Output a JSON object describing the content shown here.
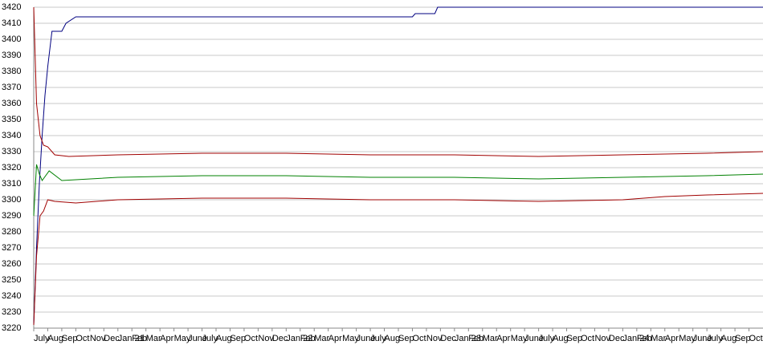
{
  "chart_data": {
    "type": "line",
    "xlim": [
      0,
      52
    ],
    "xticks": [
      {
        "value": 0,
        "label": "July"
      },
      {
        "value": 1,
        "label": "Aug"
      },
      {
        "value": 2,
        "label": "Sep"
      },
      {
        "value": 3,
        "label": "Oct"
      },
      {
        "value": 4,
        "label": "Nov"
      },
      {
        "value": 5,
        "label": "Dec"
      },
      {
        "value": 6,
        "label": "Jan 21"
      },
      {
        "value": 7,
        "label": "Feb"
      },
      {
        "value": 8,
        "label": "Mar"
      },
      {
        "value": 9,
        "label": "Apr"
      },
      {
        "value": 10,
        "label": "May"
      },
      {
        "value": 11,
        "label": "June"
      },
      {
        "value": 12,
        "label": "July"
      },
      {
        "value": 13,
        "label": "Aug"
      },
      {
        "value": 14,
        "label": "Sep"
      },
      {
        "value": 15,
        "label": "Oct"
      },
      {
        "value": 16,
        "label": "Nov"
      },
      {
        "value": 17,
        "label": "Dec"
      },
      {
        "value": 18,
        "label": "Jan 22"
      },
      {
        "value": 19,
        "label": "Feb"
      },
      {
        "value": 20,
        "label": "Mar"
      },
      {
        "value": 21,
        "label": "Apr"
      },
      {
        "value": 22,
        "label": "May"
      },
      {
        "value": 23,
        "label": "June"
      },
      {
        "value": 24,
        "label": "July"
      },
      {
        "value": 25,
        "label": "Aug"
      },
      {
        "value": 26,
        "label": "Sep"
      },
      {
        "value": 27,
        "label": "Oct"
      },
      {
        "value": 28,
        "label": "Nov"
      },
      {
        "value": 29,
        "label": "Dec"
      },
      {
        "value": 30,
        "label": "Jan 23"
      },
      {
        "value": 31,
        "label": "Feb"
      },
      {
        "value": 32,
        "label": "Mar"
      },
      {
        "value": 33,
        "label": "Apr"
      },
      {
        "value": 34,
        "label": "May"
      },
      {
        "value": 35,
        "label": "June"
      },
      {
        "value": 36,
        "label": "July"
      },
      {
        "value": 37,
        "label": "Aug"
      },
      {
        "value": 38,
        "label": "Sep"
      },
      {
        "value": 39,
        "label": "Oct"
      },
      {
        "value": 40,
        "label": "Nov"
      },
      {
        "value": 41,
        "label": "Dec"
      },
      {
        "value": 42,
        "label": "Jan 24"
      },
      {
        "value": 43,
        "label": "Feb"
      },
      {
        "value": 44,
        "label": "Mar"
      },
      {
        "value": 45,
        "label": "Apr"
      },
      {
        "value": 46,
        "label": "May"
      },
      {
        "value": 47,
        "label": "June"
      },
      {
        "value": 48,
        "label": "July"
      },
      {
        "value": 49,
        "label": "Aug"
      },
      {
        "value": 50,
        "label": "Sep"
      },
      {
        "value": 51,
        "label": "Oct"
      }
    ],
    "ylim": [
      3220,
      3420
    ],
    "yticks": [
      3220,
      3230,
      3240,
      3250,
      3260,
      3270,
      3280,
      3290,
      3300,
      3310,
      3320,
      3330,
      3340,
      3350,
      3360,
      3370,
      3380,
      3390,
      3400,
      3410,
      3420
    ],
    "grid": true,
    "series": [
      {
        "color": "#000080",
        "x": [
          0,
          0.2,
          0.4,
          0.6,
          0.8,
          1.0,
          1.3,
          2.0,
          2.3,
          3.0,
          27.0,
          27.2,
          28.6,
          28.8,
          52
        ],
        "values": [
          3222,
          3270,
          3310,
          3340,
          3365,
          3383,
          3405,
          3405,
          3410,
          3414,
          3414,
          3416,
          3416,
          3420,
          3420
        ]
      },
      {
        "color": "#a00000",
        "x": [
          0,
          0.2,
          0.45,
          0.7,
          1.0,
          1.5,
          2.5,
          6,
          12,
          18,
          24,
          30,
          36,
          42,
          48,
          52
        ],
        "values": [
          3420,
          3360,
          3340,
          3334,
          3333,
          3328,
          3327,
          3328,
          3329,
          3329,
          3328,
          3328,
          3327,
          3328,
          3329,
          3330
        ]
      },
      {
        "color": "#008000",
        "x": [
          0,
          0.2,
          0.4,
          0.6,
          1.1,
          2.0,
          6,
          12,
          18,
          24,
          30,
          36,
          42,
          48,
          52
        ],
        "values": [
          3290,
          3322,
          3316,
          3312,
          3318,
          3312,
          3314,
          3315,
          3315,
          3314,
          3314,
          3313,
          3314,
          3315,
          3316
        ]
      },
      {
        "color": "#a00000",
        "x": [
          0,
          0.2,
          0.45,
          0.7,
          1.0,
          1.5,
          3,
          6,
          12,
          18,
          24,
          30,
          36,
          42,
          45,
          48,
          52
        ],
        "values": [
          3222,
          3265,
          3290,
          3293,
          3300,
          3299,
          3298,
          3300,
          3301,
          3301,
          3300,
          3300,
          3299,
          3300,
          3302,
          3303,
          3304
        ]
      }
    ]
  }
}
